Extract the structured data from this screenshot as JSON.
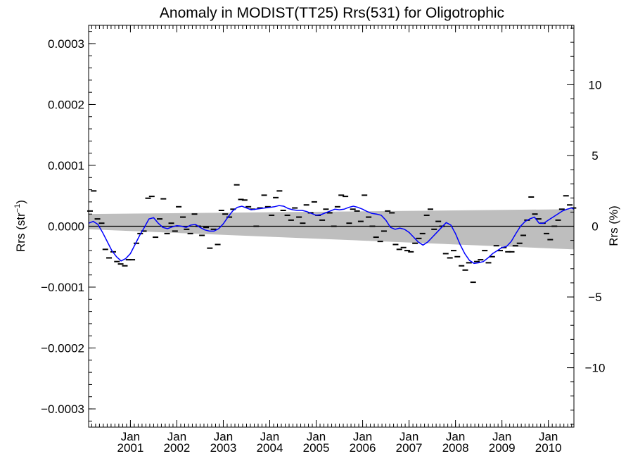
{
  "chart_data": {
    "type": "line",
    "title": "Anomaly in MODIST(TT25) Rrs(531) for Oligotrophic",
    "ylabel_left": "Rrs (str",
    "ylabel_left_sup": "−1",
    "ylabel_left_close": ")",
    "ylabel_right": "Rrs (%)",
    "ylim_left": [
      -0.00033,
      0.00033
    ],
    "ylim_right": [
      -14.2,
      14.2
    ],
    "xlim": [
      2000.1,
      2010.55
    ],
    "left_ticks": [
      {
        "v": 0.0003,
        "label": "0.0003"
      },
      {
        "v": 0.0002,
        "label": "0.0002"
      },
      {
        "v": 0.0001,
        "label": "0.0001"
      },
      {
        "v": 0.0,
        "label": "0.0000"
      },
      {
        "v": -0.0001,
        "label": "−0.0001"
      },
      {
        "v": -0.0002,
        "label": "−0.0002"
      },
      {
        "v": -0.0003,
        "label": "−0.0003"
      }
    ],
    "right_ticks": [
      {
        "v": 10,
        "label": "10"
      },
      {
        "v": 5,
        "label": "5"
      },
      {
        "v": 0,
        "label": "0"
      },
      {
        "v": -5,
        "label": "−5"
      },
      {
        "v": -10,
        "label": "−10"
      }
    ],
    "x_ticks": [
      {
        "x": 2001.0,
        "month": "Jan",
        "year": "2001"
      },
      {
        "x": 2002.0,
        "month": "Jan",
        "year": "2002"
      },
      {
        "x": 2003.0,
        "month": "Jan",
        "year": "2003"
      },
      {
        "x": 2004.0,
        "month": "Jan",
        "year": "2004"
      },
      {
        "x": 2005.0,
        "month": "Jan",
        "year": "2005"
      },
      {
        "x": 2006.0,
        "month": "Jan",
        "year": "2006"
      },
      {
        "x": 2007.0,
        "month": "Jan",
        "year": "2007"
      },
      {
        "x": 2008.0,
        "month": "Jan",
        "year": "2008"
      },
      {
        "x": 2009.0,
        "month": "Jan",
        "year": "2009"
      },
      {
        "x": 2010.0,
        "month": "Jan",
        "year": "2010"
      }
    ],
    "band": {
      "color": "#bebebe",
      "x": [
        2000.1,
        2010.55
      ],
      "upper": [
        2e-05,
        2.8e-05
      ],
      "lower": [
        -5e-06,
        -3.8e-05
      ]
    },
    "zero_line": {
      "y": 0.0,
      "color": "#000000"
    },
    "monthly_points": {
      "color": "#000000",
      "x": [
        2000.13,
        2000.21,
        2000.29,
        2000.38,
        2000.46,
        2000.54,
        2000.63,
        2000.71,
        2000.79,
        2000.88,
        2000.96,
        2001.04,
        2001.13,
        2001.21,
        2001.29,
        2001.38,
        2001.46,
        2001.54,
        2001.63,
        2001.71,
        2001.79,
        2001.88,
        2001.96,
        2002.04,
        2002.13,
        2002.21,
        2002.29,
        2002.38,
        2002.46,
        2002.54,
        2002.63,
        2002.71,
        2002.79,
        2002.88,
        2002.96,
        2003.04,
        2003.13,
        2003.21,
        2003.29,
        2003.38,
        2003.46,
        2003.54,
        2003.63,
        2003.71,
        2003.79,
        2003.88,
        2003.96,
        2004.04,
        2004.13,
        2004.21,
        2004.29,
        2004.38,
        2004.46,
        2004.54,
        2004.63,
        2004.71,
        2004.79,
        2004.88,
        2004.96,
        2005.04,
        2005.13,
        2005.21,
        2005.29,
        2005.38,
        2005.46,
        2005.54,
        2005.63,
        2005.71,
        2005.79,
        2005.88,
        2005.96,
        2006.04,
        2006.13,
        2006.21,
        2006.29,
        2006.38,
        2006.46,
        2006.54,
        2006.63,
        2006.71,
        2006.79,
        2006.88,
        2006.96,
        2007.04,
        2007.13,
        2007.21,
        2007.29,
        2007.38,
        2007.46,
        2007.54,
        2007.63,
        2007.71,
        2007.79,
        2007.88,
        2007.96,
        2008.04,
        2008.13,
        2008.21,
        2008.29,
        2008.38,
        2008.46,
        2008.54,
        2008.63,
        2008.71,
        2008.79,
        2008.88,
        2008.96,
        2009.04,
        2009.13,
        2009.21,
        2009.29,
        2009.38,
        2009.46,
        2009.54,
        2009.63,
        2009.71,
        2009.79,
        2009.88,
        2009.96,
        2010.04,
        2010.13,
        2010.21,
        2010.29,
        2010.38,
        2010.46,
        2010.54
      ],
      "y": [
        2.5e-05,
        5.8e-05,
        1.2e-05,
        5e-06,
        -3.8e-05,
        -5.2e-05,
        -4.2e-05,
        -5.8e-05,
        -6.2e-05,
        -6.5e-05,
        -5.5e-05,
        -5.5e-05,
        -2.8e-05,
        -1.2e-05,
        -8e-06,
        4.6e-05,
        4.9e-05,
        -1.8e-05,
        1.2e-05,
        4.5e-05,
        -1.2e-05,
        5e-06,
        -8e-06,
        3.2e-05,
        1.5e-05,
        -5e-06,
        -1.2e-05,
        2e-05,
        0.0,
        -1.5e-05,
        -2e-06,
        -3.6e-05,
        -5e-06,
        -3e-05,
        2.6e-05,
        2e-05,
        1.5e-05,
        2.8e-05,
        6.8e-05,
        4.4e-05,
        4.3e-05,
        3.2e-05,
        2.8e-05,
        0.0,
        3e-05,
        5.1e-05,
        3.2e-05,
        1.8e-05,
        4.7e-05,
        5.8e-05,
        2.6e-05,
        1.8e-05,
        1e-05,
        3e-05,
        1.5e-05,
        5e-06,
        3.5e-05,
        2.2e-05,
        4e-05,
        1.8e-05,
        1e-05,
        2.8e-05,
        2.2e-05,
        0.0,
        3.2e-05,
        5.1e-05,
        4.9e-05,
        5e-06,
        2.8e-05,
        2.5e-05,
        8e-06,
        5.1e-05,
        1.5e-05,
        0.0,
        -1.8e-05,
        -2.5e-05,
        -8e-06,
        2.5e-05,
        2.2e-05,
        -3e-05,
        -3.8e-05,
        -3.5e-05,
        -4e-05,
        -4.2e-05,
        -2.8e-05,
        -2e-05,
        -1.2e-05,
        1.8e-05,
        2.8e-05,
        -5e-06,
        8e-06,
        0.0,
        -4.5e-05,
        -5.2e-05,
        -4e-05,
        -5e-05,
        -6.5e-05,
        -7.2e-05,
        -6e-05,
        -9.2e-05,
        -5.8e-05,
        -5.5e-05,
        -4e-05,
        -6e-05,
        -5e-05,
        -3.2e-05,
        -4e-05,
        -3.5e-05,
        -4.2e-05,
        -4.2e-05,
        -3.2e-05,
        -2.8e-05,
        -1.5e-05,
        1e-05,
        4.8e-05,
        2e-05,
        1.2e-05,
        5e-06,
        -1.2e-05,
        -2.2e-05,
        0.0,
        1e-05,
        2.8e-05,
        5e-05,
        3.5e-05,
        3e-05
      ]
    },
    "running_mean": {
      "color": "#0000ff",
      "x": [
        2000.1,
        2000.2,
        2000.3,
        2000.4,
        2000.5,
        2000.6,
        2000.7,
        2000.8,
        2000.9,
        2001.0,
        2001.1,
        2001.2,
        2001.3,
        2001.4,
        2001.5,
        2001.6,
        2001.7,
        2001.8,
        2001.9,
        2002.0,
        2002.1,
        2002.2,
        2002.3,
        2002.4,
        2002.5,
        2002.6,
        2002.7,
        2002.8,
        2002.9,
        2003.0,
        2003.1,
        2003.2,
        2003.3,
        2003.4,
        2003.5,
        2003.6,
        2003.7,
        2003.8,
        2003.9,
        2004.0,
        2004.1,
        2004.2,
        2004.3,
        2004.4,
        2004.5,
        2004.6,
        2004.7,
        2004.8,
        2004.9,
        2005.0,
        2005.1,
        2005.2,
        2005.3,
        2005.4,
        2005.5,
        2005.6,
        2005.7,
        2005.8,
        2005.9,
        2006.0,
        2006.1,
        2006.2,
        2006.3,
        2006.4,
        2006.5,
        2006.6,
        2006.7,
        2006.8,
        2006.9,
        2007.0,
        2007.1,
        2007.2,
        2007.3,
        2007.4,
        2007.5,
        2007.6,
        2007.7,
        2007.8,
        2007.9,
        2008.0,
        2008.1,
        2008.2,
        2008.3,
        2008.4,
        2008.5,
        2008.6,
        2008.7,
        2008.8,
        2008.9,
        2009.0,
        2009.1,
        2009.2,
        2009.3,
        2009.4,
        2009.5,
        2009.6,
        2009.7,
        2009.8,
        2009.9,
        2010.0,
        2010.1,
        2010.2,
        2010.3,
        2010.4,
        2010.5,
        2010.55
      ],
      "y": [
        5e-06,
        8e-06,
        3e-06,
        -1e-05,
        -2.5e-05,
        -4e-05,
        -5e-05,
        -5.7e-05,
        -5.3e-05,
        -4.5e-05,
        -3e-05,
        -1.5e-05,
        -2e-06,
        1.2e-05,
        1.4e-05,
        5e-06,
        -2e-06,
        -4e-06,
        -1e-06,
        1e-06,
        0.0,
        -2e-06,
        2e-06,
        3e-06,
        -2e-06,
        -6e-06,
        -8e-06,
        -8e-06,
        -4e-06,
        4e-06,
        1.5e-05,
        2.5e-05,
        3.1e-05,
        3.3e-05,
        3e-05,
        2.7e-05,
        2.8e-05,
        2.9e-05,
        3e-05,
        3.1e-05,
        3.2e-05,
        3.4e-05,
        3.3e-05,
        2.9e-05,
        2.7e-05,
        2.6e-05,
        2.6e-05,
        2.4e-05,
        2.1e-05,
        1.8e-05,
        1.9e-05,
        2.2e-05,
        2.5e-05,
        2.8e-05,
        2.7e-05,
        2.8e-05,
        3.1e-05,
        3.3e-05,
        3.1e-05,
        2.8e-05,
        2.4e-05,
        2.1e-05,
        2e-05,
        1.8e-05,
        1e-05,
        -2e-06,
        -5e-06,
        -3e-06,
        -5e-06,
        -1e-05,
        -1.8e-05,
        -2.6e-05,
        -3.1e-05,
        -2.6e-05,
        -1.8e-05,
        -1e-05,
        -2e-06,
        6e-06,
        2e-06,
        -1.2e-05,
        -3e-05,
        -4.5e-05,
        -5.6e-05,
        -6.1e-05,
        -6e-05,
        -5.8e-05,
        -5.2e-05,
        -4.5e-05,
        -4e-05,
        -3.5e-05,
        -3.3e-05,
        -2.5e-05,
        -1.2e-05,
        0.0,
        8e-06,
        1.2e-05,
        1.5e-05,
        5e-06,
        5e-06,
        1e-05,
        1.5e-05,
        2e-05,
        2.5e-05,
        2.8e-05,
        3e-05,
        2.8e-05
      ]
    }
  }
}
